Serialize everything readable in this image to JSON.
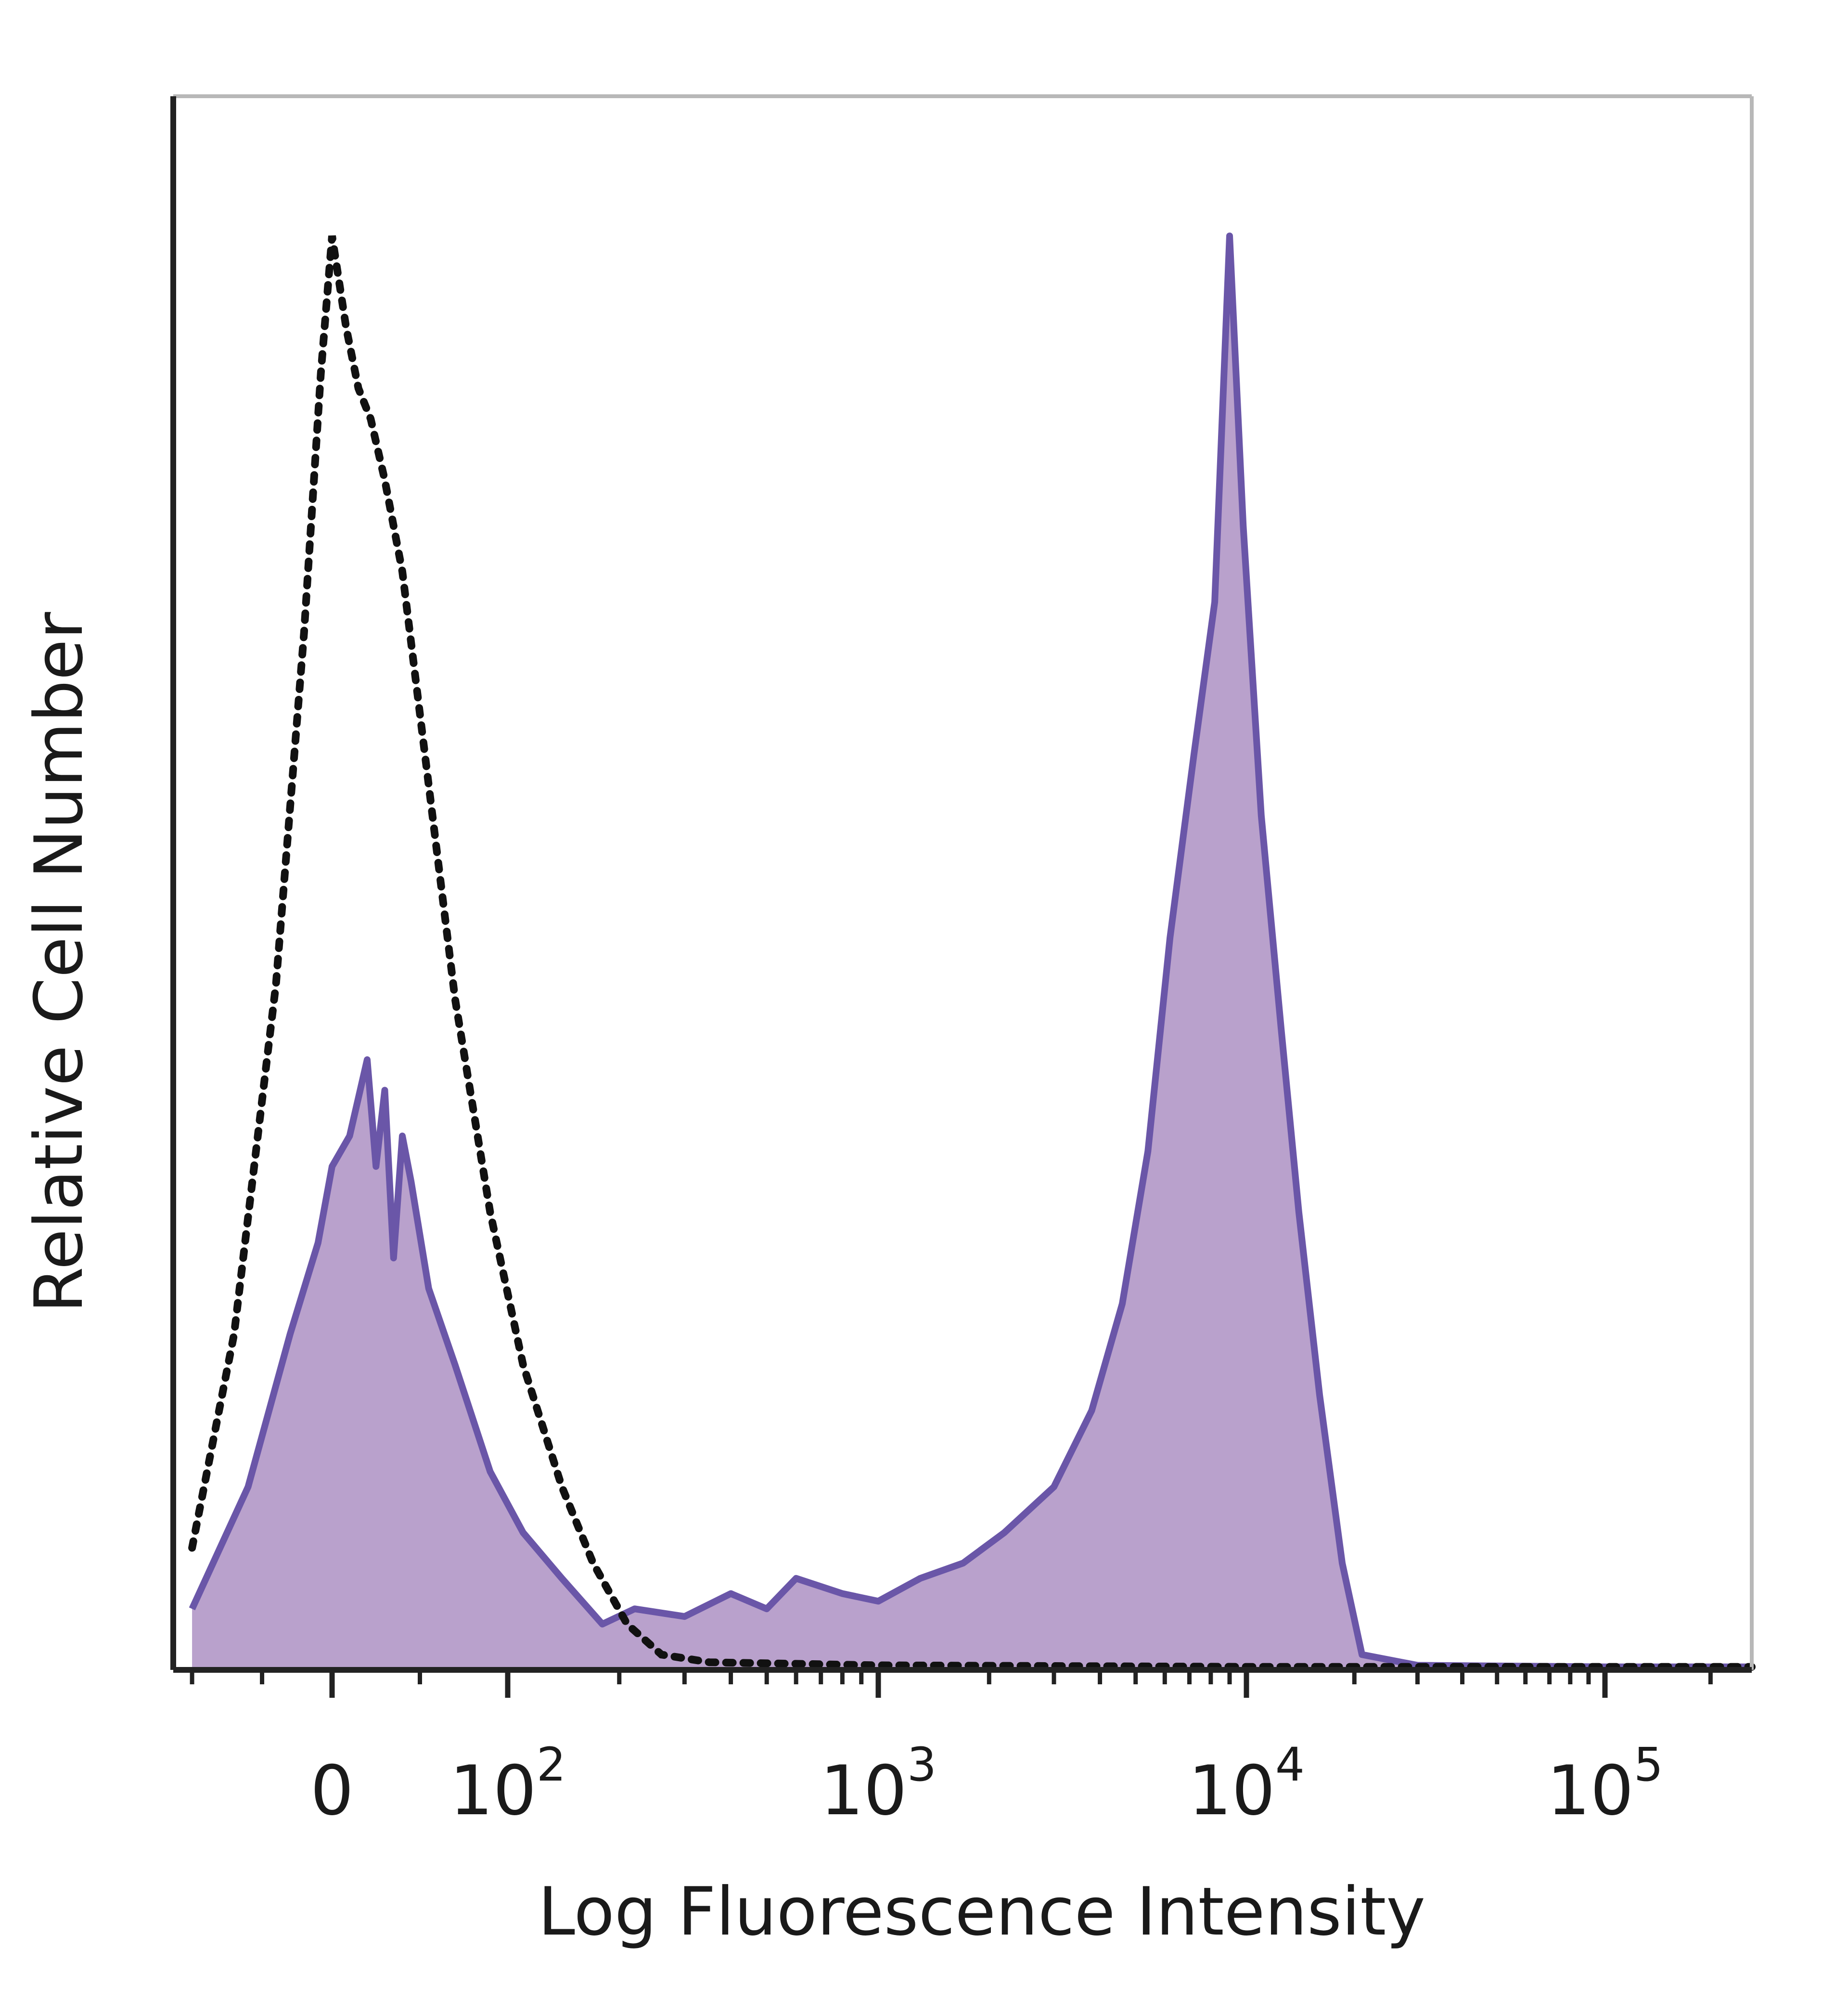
{
  "chart_data": {
    "type": "area",
    "title": "",
    "xlabel": "Log Fluorescence Intensity",
    "ylabel": "Relative Cell Number",
    "x_scale": "biexponential",
    "xlim": [
      -110,
      262144
    ],
    "ylim": [
      0,
      100
    ],
    "grid": false,
    "legend": "none",
    "x_ticks": [
      {
        "value": 0,
        "base": "0",
        "exp": ""
      },
      {
        "value": 100,
        "base": "10",
        "exp": "2"
      },
      {
        "value": 1000,
        "base": "10",
        "exp": "3"
      },
      {
        "value": 10000,
        "base": "10",
        "exp": "4"
      },
      {
        "value": 100000,
        "base": "10",
        "exp": "5"
      }
    ],
    "series": [
      {
        "style": "filled",
        "color": "#6a56a8",
        "fill": "#b9a1cc",
        "points": [
          [
            -100,
            4
          ],
          [
            -60,
            12
          ],
          [
            -30,
            22
          ],
          [
            -10,
            28
          ],
          [
            0,
            33
          ],
          [
            10,
            35
          ],
          [
            20,
            40
          ],
          [
            25,
            33
          ],
          [
            30,
            38
          ],
          [
            35,
            27
          ],
          [
            40,
            35
          ],
          [
            45,
            32
          ],
          [
            55,
            25
          ],
          [
            70,
            20
          ],
          [
            90,
            13
          ],
          [
            110,
            9
          ],
          [
            140,
            6
          ],
          [
            180,
            3
          ],
          [
            220,
            4
          ],
          [
            300,
            3.5
          ],
          [
            400,
            5
          ],
          [
            500,
            4
          ],
          [
            600,
            6
          ],
          [
            800,
            5
          ],
          [
            1000,
            4.5
          ],
          [
            1300,
            6
          ],
          [
            1700,
            7
          ],
          [
            2200,
            9
          ],
          [
            3000,
            12
          ],
          [
            3800,
            17
          ],
          [
            4600,
            24
          ],
          [
            5400,
            34
          ],
          [
            6200,
            48
          ],
          [
            7200,
            60
          ],
          [
            8200,
            70
          ],
          [
            9000,
            94
          ],
          [
            9800,
            75
          ],
          [
            11000,
            56
          ],
          [
            12500,
            42
          ],
          [
            14000,
            30
          ],
          [
            16000,
            18
          ],
          [
            18500,
            7
          ],
          [
            21000,
            1
          ],
          [
            30000,
            0.3
          ],
          [
            100000,
            0.2
          ],
          [
            262144,
            0.2
          ]
        ]
      },
      {
        "style": "dotted",
        "color": "#111111",
        "points": [
          [
            -100,
            8
          ],
          [
            -70,
            22
          ],
          [
            -40,
            45
          ],
          [
            -20,
            68
          ],
          [
            -8,
            85
          ],
          [
            0,
            94
          ],
          [
            8,
            88
          ],
          [
            15,
            84
          ],
          [
            22,
            82
          ],
          [
            30,
            78
          ],
          [
            40,
            72
          ],
          [
            55,
            58
          ],
          [
            70,
            44
          ],
          [
            90,
            30
          ],
          [
            110,
            20
          ],
          [
            140,
            12
          ],
          [
            170,
            7
          ],
          [
            210,
            3
          ],
          [
            260,
            1
          ],
          [
            350,
            0.5
          ],
          [
            1000,
            0.3
          ],
          [
            10000,
            0.2
          ],
          [
            262144,
            0.2
          ]
        ]
      }
    ]
  }
}
